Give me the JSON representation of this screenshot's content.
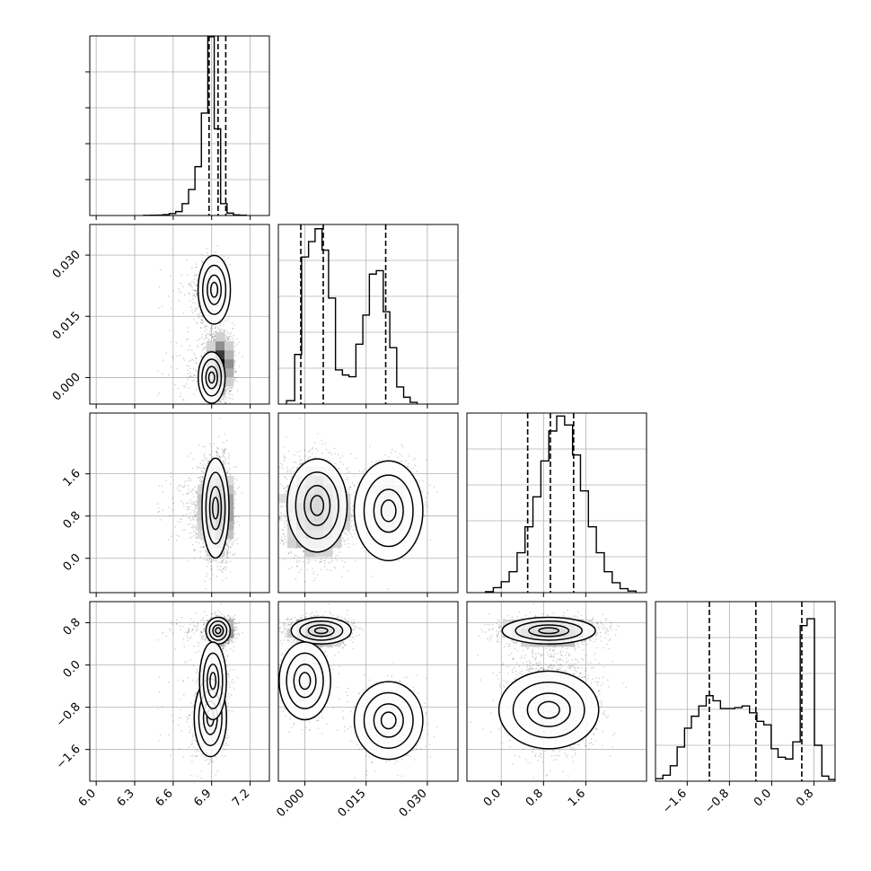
{
  "chart_data": {
    "type": "corner",
    "grid": true,
    "params": [
      {
        "range": [
          5.95,
          7.35
        ],
        "ticks": [
          6.0,
          6.3,
          6.6,
          6.9,
          7.2
        ],
        "tick_labels": [
          "6.0",
          "6.3",
          "6.6",
          "6.9",
          "7.2"
        ],
        "quantiles": [
          6.88,
          6.95,
          7.01
        ],
        "hist": {
          "bin_edges": [
            6.37,
            6.42,
            6.47,
            6.52,
            6.57,
            6.62,
            6.67,
            6.72,
            6.77,
            6.82,
            6.87,
            6.92,
            6.97,
            7.02,
            7.07,
            7.12,
            7.17
          ],
          "counts": [
            2,
            3,
            5,
            10,
            25,
            50,
            150,
            330,
            620,
            1300,
            2270,
            1100,
            150,
            30,
            8,
            3
          ],
          "ylim": [
            0,
            2280
          ]
        }
      },
      {
        "range": [
          -0.0065,
          0.0375
        ],
        "ticks": [
          0.0,
          0.015,
          0.03
        ],
        "tick_labels": [
          "0.000",
          "0.015",
          "0.030"
        ],
        "quantiles": [
          -0.001,
          0.0045,
          0.0198
        ],
        "hist": {
          "bin_edges": [
            -0.0045,
            -0.0025,
            -0.0008,
            0.0009,
            0.0025,
            0.0042,
            0.0058,
            0.0075,
            0.0092,
            0.0108,
            0.0125,
            0.0142,
            0.0158,
            0.0175,
            0.0192,
            0.0208,
            0.0225,
            0.0242,
            0.0258,
            0.0275
          ],
          "counts": [
            20,
            290,
            860,
            950,
            1025,
            900,
            620,
            200,
            170,
            160,
            350,
            520,
            760,
            780,
            540,
            330,
            100,
            40,
            10
          ],
          "ylim": [
            0,
            1050
          ]
        }
      },
      {
        "range": [
          -0.65,
          2.75
        ],
        "ticks": [
          0.0,
          0.8,
          1.6
        ],
        "tick_labels": [
          "0.0",
          "0.8",
          "1.6"
        ],
        "quantiles": [
          0.5,
          0.93,
          1.37
        ],
        "hist": {
          "bin_edges": [
            -0.3,
            -0.15,
            0.0,
            0.15,
            0.3,
            0.45,
            0.6,
            0.75,
            0.9,
            1.05,
            1.2,
            1.35,
            1.5,
            1.65,
            1.8,
            1.95,
            2.1,
            2.25,
            2.4,
            2.55
          ],
          "counts": [
            5,
            25,
            55,
            105,
            200,
            330,
            480,
            660,
            810,
            885,
            840,
            690,
            510,
            330,
            200,
            105,
            50,
            20,
            8
          ],
          "ylim": [
            0,
            900
          ]
        }
      },
      {
        "range": [
          -2.2,
          1.2
        ],
        "ticks": [
          -1.6,
          -0.8,
          0.0,
          0.8
        ],
        "tick_labels": [
          "−1.6",
          "−0.8",
          "0.0",
          "0.8"
        ],
        "quantiles": [
          -1.18,
          -0.3,
          0.57
        ],
        "hist": {
          "bin_edges": [
            -2.2,
            -2.06,
            -1.92,
            -1.79,
            -1.65,
            -1.52,
            -1.38,
            -1.24,
            -1.11,
            -0.97,
            -0.83,
            -0.7,
            -0.56,
            -0.42,
            -0.28,
            -0.15,
            -0.01,
            0.12,
            0.26,
            0.4,
            0.54,
            0.67,
            0.81,
            0.95,
            1.08,
            1.2
          ],
          "counts": [
            15,
            35,
            90,
            200,
            310,
            380,
            440,
            500,
            470,
            425,
            425,
            430,
            440,
            400,
            350,
            330,
            190,
            140,
            130,
            230,
            910,
            950,
            210,
            30,
            10
          ],
          "ylim": [
            0,
            1050
          ]
        }
      }
    ],
    "modes": [
      {
        "weight": 0.62,
        "mu": [
          6.97,
          0.0035,
          0.9,
          0.65
        ],
        "sd": [
          0.045,
          0.0035,
          0.42,
          0.12
        ]
      },
      {
        "weight": 0.18,
        "mu": [
          6.92,
          0.0,
          0.95,
          -0.3
        ],
        "sd": [
          0.05,
          0.003,
          0.45,
          0.35
        ]
      },
      {
        "weight": 0.2,
        "mu": [
          6.88,
          0.0205,
          1.0,
          -1.1
        ],
        "sd": [
          0.06,
          0.004,
          0.45,
          0.35
        ]
      }
    ],
    "contours": {
      "0_1": [
        [
          [
            6.9,
            0.0
          ]
        ],
        [
          [
            6.92,
            0.0215
          ]
        ]
      ],
      "0_2": [
        [
          [
            6.93,
            0.95
          ]
        ]
      ],
      "0_3": [
        [
          [
            6.95,
            0.65
          ]
        ],
        [
          [
            6.89,
            -1.0
          ]
        ],
        [
          [
            6.91,
            -0.3
          ]
        ]
      ],
      "1_2": [
        [
          [
            0.003,
            1.0
          ]
        ],
        [
          [
            0.0205,
            0.9
          ]
        ]
      ],
      "1_3": [
        [
          [
            0.004,
            0.65
          ]
        ],
        [
          [
            0.0,
            -0.3
          ]
        ],
        [
          [
            0.0205,
            -1.05
          ]
        ]
      ],
      "2_3": [
        [
          [
            0.9,
            0.65
          ]
        ],
        [
          [
            0.9,
            -0.85
          ]
        ]
      ]
    }
  }
}
